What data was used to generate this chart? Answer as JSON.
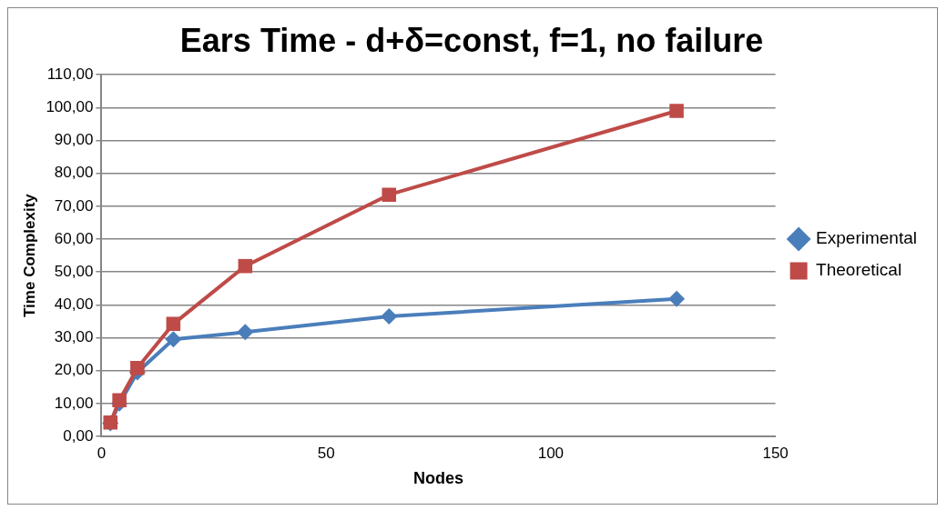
{
  "chart_data": {
    "type": "line",
    "title": "Ears Time - d+δ=const, f=1, no failure",
    "xlabel": "Nodes",
    "ylabel": "Time Complexity",
    "x": [
      2,
      4,
      8,
      16,
      32,
      64,
      128
    ],
    "series": [
      {
        "name": "Experimental",
        "color": "#4a7ebb",
        "marker": "diamond",
        "values": [
          4,
          10,
          19.5,
          29.5,
          31.7,
          36.5,
          41.8
        ]
      },
      {
        "name": "Theoretical",
        "color": "#be4b48",
        "marker": "square",
        "values": [
          4.2,
          11,
          20.8,
          34.2,
          51.8,
          73.5,
          99
        ]
      }
    ],
    "xlim": [
      0,
      150
    ],
    "xticks": [
      0,
      50,
      100,
      150
    ],
    "ylim": [
      0,
      110
    ],
    "yticks": [
      {
        "value": 0,
        "label": "0,00"
      },
      {
        "value": 10,
        "label": "10,00"
      },
      {
        "value": 20,
        "label": "20,00"
      },
      {
        "value": 30,
        "label": "30,00"
      },
      {
        "value": 40,
        "label": "40,00"
      },
      {
        "value": 50,
        "label": "50,00"
      },
      {
        "value": 60,
        "label": "60,00"
      },
      {
        "value": 70,
        "label": "70,00"
      },
      {
        "value": 80,
        "label": "80,00"
      },
      {
        "value": 90,
        "label": "90,00"
      },
      {
        "value": 100,
        "label": "100,00"
      },
      {
        "value": 110,
        "label": "110,00"
      }
    ],
    "grid": "y",
    "legend": "right",
    "line_style": "solid"
  }
}
